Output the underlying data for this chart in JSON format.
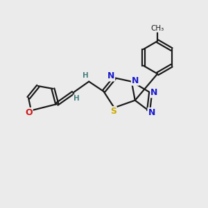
{
  "background_color": "#ebebeb",
  "bond_color": "#1a1a1a",
  "atom_colors": {
    "N": "#1a1acc",
    "S": "#ccaa00",
    "O": "#cc1a1a",
    "C": "#1a1a1a",
    "H": "#4a8080"
  },
  "bond_width": 1.6,
  "font_size_atom": 9,
  "font_size_h": 7.5,
  "font_size_ch3": 7.5
}
